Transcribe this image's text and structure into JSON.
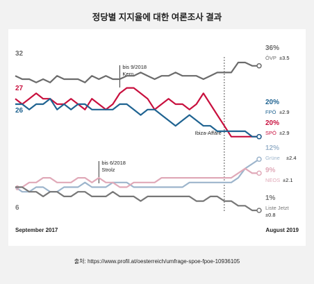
{
  "title": "정당별 지지율에 대한 여론조사 결과",
  "source": "출처: https://www.profil.at/oesterreich/umfrage-spoe-fpoe-10936105",
  "chart_data": {
    "type": "line",
    "x_start_label": "September 2017",
    "x_end_label": "August 2019",
    "ylim": [
      0,
      40
    ],
    "grid": false,
    "n_points": 36,
    "annotations": [
      {
        "label": "bis 9/2018",
        "label2": "Kern",
        "x_index": 15
      },
      {
        "label": "bis 6/2018",
        "label2": "Strolz",
        "x_index": 12
      },
      {
        "label": "Ibiza-Affäre",
        "x_index": 30
      }
    ],
    "series": [
      {
        "name": "ÖVP",
        "color": "#6b6b6b",
        "start_label": "32",
        "end_label": "36%",
        "note": "±3.5",
        "values": [
          32,
          31,
          31,
          30,
          31,
          30,
          32,
          31,
          31,
          31,
          30,
          32,
          31,
          32,
          31,
          31,
          32,
          32,
          33,
          32,
          31,
          32,
          32,
          33,
          32,
          32,
          32,
          31,
          32,
          33,
          33,
          33,
          36,
          36,
          35,
          35
        ]
      },
      {
        "name": "SPÖ",
        "color": "#c8103e",
        "start_label": "27",
        "end_label": "20%",
        "note": "±2.9",
        "values": [
          27,
          26,
          27,
          28,
          27,
          27,
          26,
          26,
          27,
          26,
          25,
          27,
          26,
          25,
          26,
          28,
          29,
          29,
          28,
          27,
          25,
          26,
          27,
          26,
          26,
          25,
          26,
          28,
          26,
          24,
          22,
          20,
          20,
          20,
          20,
          20
        ]
      },
      {
        "name": "FPÖ",
        "color": "#1f6391",
        "start_label": "26",
        "end_label": "20%",
        "note": "±2.9",
        "values": [
          26,
          26,
          25,
          26,
          26,
          27,
          25,
          26,
          25,
          26,
          26,
          25,
          25,
          25,
          25,
          26,
          26,
          25,
          24,
          25,
          25,
          24,
          23,
          22,
          23,
          24,
          23,
          22,
          22,
          21,
          21,
          21,
          21,
          21,
          20,
          20
        ]
      },
      {
        "name": "Grüne",
        "color": "#9db5cc",
        "start_label": "",
        "end_label": "12%",
        "note": "±2.4",
        "values": [
          6,
          5,
          5,
          6,
          6,
          5,
          5,
          6,
          6,
          6,
          7,
          6,
          6,
          6,
          7,
          7,
          7,
          6,
          6,
          6,
          6,
          6,
          6,
          6,
          6,
          7,
          7,
          7,
          7,
          7,
          7,
          7,
          8,
          10,
          11,
          12
        ]
      },
      {
        "name": "NEOS",
        "color": "#e0a9b8",
        "start_label": "6",
        "end_label": "9%",
        "note": "±2.1",
        "values": [
          6,
          6,
          7,
          7,
          8,
          8,
          7,
          7,
          7,
          8,
          8,
          7,
          8,
          7,
          7,
          6,
          6,
          7,
          7,
          7,
          7,
          8,
          8,
          8,
          8,
          8,
          8,
          8,
          8,
          8,
          8,
          8,
          9,
          10,
          9,
          9
        ]
      },
      {
        "name": "Liste Jetzt",
        "color": "#777777",
        "start_label": "6",
        "end_label": "1%",
        "note": "±0.8",
        "values": [
          6,
          6,
          5,
          5,
          4,
          5,
          5,
          4,
          4,
          5,
          5,
          4,
          4,
          4,
          5,
          4,
          4,
          4,
          3,
          4,
          4,
          4,
          4,
          4,
          4,
          4,
          3,
          3,
          4,
          4,
          3,
          3,
          2,
          2,
          1,
          1
        ]
      }
    ]
  }
}
